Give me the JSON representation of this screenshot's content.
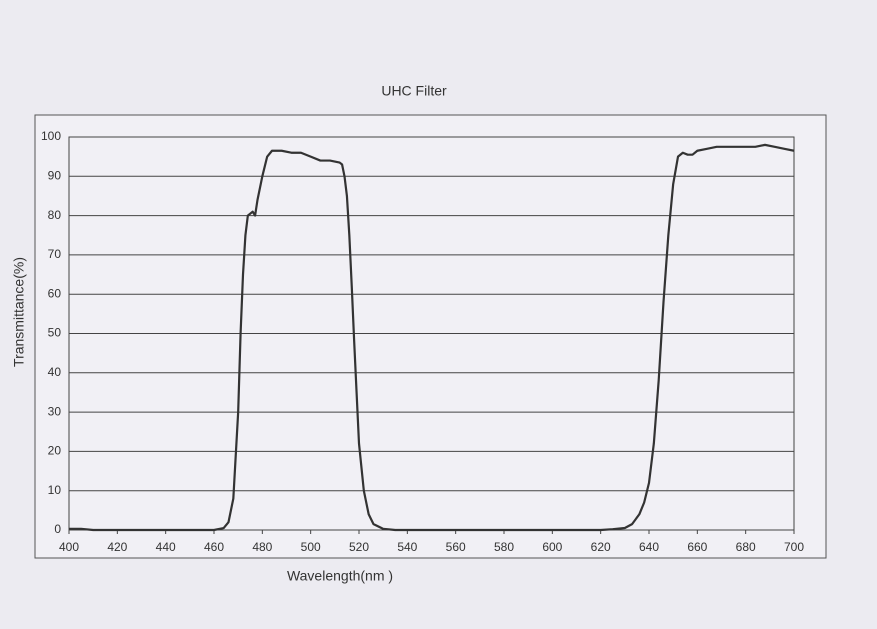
{
  "chart_data": {
    "type": "line",
    "title": "UHC Filter",
    "x_label": "Wavelength(nm )",
    "y_label": "Transmittance(%)",
    "color": "#333333",
    "grid": true,
    "xlim": [
      400,
      700
    ],
    "ylim": [
      0,
      100
    ],
    "xticks": [
      400,
      420,
      440,
      460,
      480,
      500,
      520,
      540,
      560,
      580,
      600,
      620,
      640,
      660,
      680,
      700
    ],
    "yticks": [
      0,
      10,
      20,
      30,
      40,
      50,
      60,
      70,
      80,
      90,
      100
    ],
    "x": [
      400,
      405,
      410,
      460,
      464,
      466,
      468,
      470,
      471,
      472,
      473,
      474,
      476,
      477,
      478,
      480,
      482,
      484,
      488,
      492,
      496,
      500,
      504,
      508,
      512,
      513,
      514,
      515,
      516,
      517,
      518,
      519,
      520,
      522,
      524,
      526,
      530,
      535,
      620,
      625,
      630,
      633,
      636,
      638,
      640,
      642,
      644,
      646,
      648,
      650,
      652,
      654,
      656,
      658,
      660,
      664,
      668,
      672,
      676,
      680,
      684,
      688,
      692,
      696,
      700
    ],
    "values": [
      0.3,
      0.3,
      0,
      0,
      0.5,
      2,
      8,
      30,
      50,
      65,
      75,
      80,
      81,
      80,
      84,
      90,
      95,
      96.5,
      96.5,
      96,
      96,
      95,
      94,
      94,
      93.5,
      93,
      90,
      85,
      75,
      62,
      48,
      35,
      22,
      10,
      4,
      1.5,
      0.3,
      0,
      0,
      0.2,
      0.5,
      1.5,
      4,
      7,
      12,
      22,
      38,
      58,
      75,
      88,
      95,
      96,
      95.5,
      95.5,
      96.5,
      97,
      97.5,
      97.5,
      97.5,
      97.5,
      97.5,
      98,
      97.5,
      97,
      96.5
    ]
  }
}
